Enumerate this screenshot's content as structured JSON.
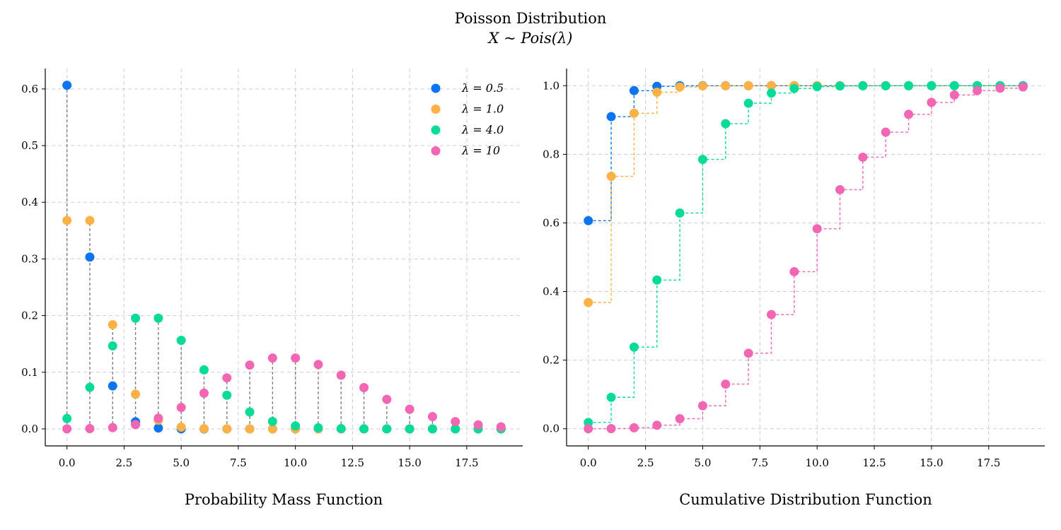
{
  "figure": {
    "title": "Poisson Distribution",
    "subtitle": "X ~ Pois(λ)"
  },
  "series_styles": [
    {
      "name": "λ = 0.5",
      "lambda": 0.5,
      "color": "#0a74f3"
    },
    {
      "name": "λ = 1.0",
      "lambda": 1.0,
      "color": "#feb246"
    },
    {
      "name": "λ = 4.0",
      "lambda": 4.0,
      "color": "#08db97"
    },
    {
      "name": "λ = 10",
      "lambda": 10,
      "color": "#f266b3"
    }
  ],
  "chart_data": [
    {
      "type": "scatter",
      "subtype": "stem",
      "xlabel": "Probability Mass Function",
      "x": [
        0,
        1,
        2,
        3,
        4,
        5,
        6,
        7,
        8,
        9,
        10,
        11,
        12,
        13,
        14,
        15,
        16,
        17,
        18,
        19
      ],
      "xlim": [
        -0.95,
        19.95
      ],
      "ylim": [
        -0.03,
        0.636
      ],
      "xticks": [
        0.0,
        2.5,
        5.0,
        7.5,
        10.0,
        12.5,
        15.0,
        17.5
      ],
      "xtick_labels": [
        "0.0",
        "2.5",
        "5.0",
        "7.5",
        "10.0",
        "12.5",
        "15.0",
        "17.5"
      ],
      "yticks": [
        0.0,
        0.1,
        0.2,
        0.3,
        0.4,
        0.5,
        0.6
      ],
      "ytick_labels": [
        "0.0",
        "0.1",
        "0.2",
        "0.3",
        "0.4",
        "0.5",
        "0.6"
      ],
      "grid": true,
      "legend": "top-right",
      "series": [
        {
          "name": "λ = 0.5",
          "values": [
            0.6065,
            0.3033,
            0.0758,
            0.0126,
            0.0016,
            0.0002,
            0,
            0,
            0,
            0,
            0,
            0,
            0,
            0,
            0,
            0,
            0,
            0,
            0,
            0
          ]
        },
        {
          "name": "λ = 1.0",
          "values": [
            0.3679,
            0.3679,
            0.1839,
            0.0613,
            0.0153,
            0.0031,
            0.0005,
            0.0001,
            0,
            0,
            0,
            0,
            0,
            0,
            0,
            0,
            0,
            0,
            0,
            0
          ]
        },
        {
          "name": "λ = 4.0",
          "values": [
            0.0183,
            0.0733,
            0.1465,
            0.1954,
            0.1954,
            0.1563,
            0.1042,
            0.0595,
            0.0298,
            0.0132,
            0.0053,
            0.0019,
            0.0006,
            0.0002,
            0.0001,
            0,
            0,
            0,
            0,
            0
          ]
        },
        {
          "name": "λ = 10",
          "values": [
            5e-05,
            0.0005,
            0.0023,
            0.0076,
            0.0189,
            0.0378,
            0.0631,
            0.0901,
            0.1126,
            0.1251,
            0.1251,
            0.1137,
            0.0948,
            0.0729,
            0.0521,
            0.0347,
            0.0217,
            0.0128,
            0.0071,
            0.0037
          ]
        }
      ]
    },
    {
      "type": "line",
      "subtype": "step",
      "xlabel": "Cumulative Distribution Function",
      "x": [
        0,
        1,
        2,
        3,
        4,
        5,
        6,
        7,
        8,
        9,
        10,
        11,
        12,
        13,
        14,
        15,
        16,
        17,
        18,
        19
      ],
      "xlim": [
        -0.95,
        19.95
      ],
      "ylim": [
        -0.05,
        1.05
      ],
      "xticks": [
        0.0,
        2.5,
        5.0,
        7.5,
        10.0,
        12.5,
        15.0,
        17.5
      ],
      "xtick_labels": [
        "0.0",
        "2.5",
        "5.0",
        "7.5",
        "10.0",
        "12.5",
        "15.0",
        "17.5"
      ],
      "yticks": [
        0.0,
        0.2,
        0.4,
        0.6,
        0.8,
        1.0
      ],
      "ytick_labels": [
        "0.0",
        "0.2",
        "0.4",
        "0.6",
        "0.8",
        "1.0"
      ],
      "grid": true,
      "series": [
        {
          "name": "λ = 0.5",
          "values": [
            0.6065,
            0.9098,
            0.9856,
            0.9982,
            0.9998,
            1,
            1,
            1,
            1,
            1,
            1,
            1,
            1,
            1,
            1,
            1,
            1,
            1,
            1,
            1
          ]
        },
        {
          "name": "λ = 1.0",
          "values": [
            0.3679,
            0.7358,
            0.9197,
            0.981,
            0.9963,
            0.9994,
            0.9999,
            1,
            1,
            1,
            1,
            1,
            1,
            1,
            1,
            1,
            1,
            1,
            1,
            1
          ]
        },
        {
          "name": "λ = 4.0",
          "values": [
            0.0183,
            0.0916,
            0.2381,
            0.4335,
            0.6288,
            0.7851,
            0.8893,
            0.9489,
            0.9786,
            0.9919,
            0.9972,
            0.9991,
            0.9997,
            0.9999,
            1,
            1,
            1,
            1,
            1,
            1
          ]
        },
        {
          "name": "λ = 10",
          "values": [
            5e-05,
            0.0005,
            0.0028,
            0.0103,
            0.0293,
            0.0671,
            0.1301,
            0.2202,
            0.3328,
            0.4579,
            0.583,
            0.6968,
            0.7916,
            0.8645,
            0.9165,
            0.9513,
            0.973,
            0.9857,
            0.9928,
            0.9965
          ]
        }
      ]
    }
  ]
}
